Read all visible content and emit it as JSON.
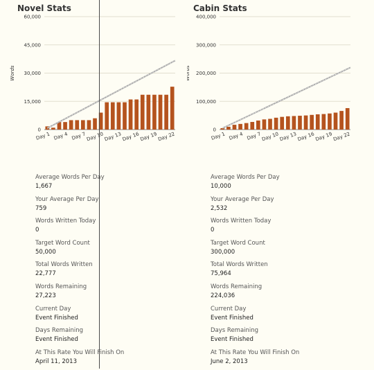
{
  "novel": {
    "title": "Novel Stats",
    "stats": [
      {
        "label": "Average Words Per Day",
        "value": "1,667"
      },
      {
        "label": "Your Average Per Day",
        "value": "759"
      },
      {
        "label": "Words Written Today",
        "value": "0"
      },
      {
        "label": "Target Word Count",
        "value": "50,000"
      },
      {
        "label": "Total Words Written",
        "value": "22,777"
      },
      {
        "label": "Words Remaining",
        "value": "27,223"
      },
      {
        "label": "Current Day",
        "value": "Event Finished"
      },
      {
        "label": "Days Remaining",
        "value": "Event Finished"
      },
      {
        "label": "At This Rate You Will Finish On",
        "value": "April 11, 2013"
      }
    ]
  },
  "cabin": {
    "title": "Cabin Stats",
    "stats": [
      {
        "label": "Average Words Per Day",
        "value": "10,000"
      },
      {
        "label": "Your Average Per Day",
        "value": "2,532"
      },
      {
        "label": "Words Written Today",
        "value": "0"
      },
      {
        "label": "Target Word Count",
        "value": "300,000"
      },
      {
        "label": "Total Words Written",
        "value": "75,964"
      },
      {
        "label": "Words Remaining",
        "value": "224,036"
      },
      {
        "label": "Current Day",
        "value": "Event Finished"
      },
      {
        "label": "Days Remaining",
        "value": "Event Finished"
      },
      {
        "label": "At This Rate You Will Finish On",
        "value": "June 2, 2013"
      }
    ]
  },
  "chart_data": [
    {
      "type": "bar",
      "title": "Novel Stats",
      "ylabel": "Words",
      "xlabel": "",
      "ylim": [
        0,
        60000
      ],
      "yticks": [
        0,
        15000,
        30000,
        45000,
        60000
      ],
      "ytick_labels": [
        "0",
        "15,000",
        "30,000",
        "45,000",
        "60,000"
      ],
      "grid": true,
      "categories": [
        "Day 1",
        "Day 2",
        "Day 3",
        "Day 4",
        "Day 5",
        "Day 6",
        "Day 7",
        "Day 8",
        "Day 9",
        "Day 10",
        "Day 11",
        "Day 12",
        "Day 13",
        "Day 14",
        "Day 15",
        "Day 16",
        "Day 17",
        "Day 18",
        "Day 19",
        "Day 20",
        "Day 21",
        "Day 22"
      ],
      "xtick_labels": [
        "Day 1",
        "Day 4",
        "Day 7",
        "Day 10",
        "Day 13",
        "Day 16",
        "Day 19",
        "Day 22"
      ],
      "values": [
        1700,
        1000,
        4000,
        4000,
        5000,
        5000,
        5000,
        5000,
        6000,
        9000,
        14500,
        14500,
        14500,
        14500,
        16000,
        16000,
        18500,
        18500,
        18500,
        18500,
        18500,
        22777
      ],
      "target_line": {
        "from": 0,
        "to": 36667
      },
      "bar_color": "#b5531e",
      "target_color": "#aaaaaa"
    },
    {
      "type": "bar",
      "title": "Cabin Stats",
      "ylabel": "Words",
      "xlabel": "",
      "ylim": [
        0,
        400000
      ],
      "yticks": [
        0,
        100000,
        200000,
        300000,
        400000
      ],
      "ytick_labels": [
        "0",
        "100,000",
        "200,000",
        "300,000",
        "400,000"
      ],
      "grid": true,
      "categories": [
        "Day 1",
        "Day 2",
        "Day 3",
        "Day 4",
        "Day 5",
        "Day 6",
        "Day 7",
        "Day 8",
        "Day 9",
        "Day 10",
        "Day 11",
        "Day 12",
        "Day 13",
        "Day 14",
        "Day 15",
        "Day 16",
        "Day 17",
        "Day 18",
        "Day 19",
        "Day 20",
        "Day 21",
        "Day 22"
      ],
      "xtick_labels": [
        "Day 1",
        "Day 4",
        "Day 7",
        "Day 10",
        "Day 13",
        "Day 16",
        "Day 19",
        "Day 22"
      ],
      "values": [
        5000,
        10000,
        17000,
        20000,
        23000,
        27000,
        32000,
        36000,
        38000,
        42000,
        45000,
        47000,
        48000,
        49000,
        50000,
        52000,
        54000,
        55000,
        57000,
        60000,
        66000,
        75964
      ],
      "target_line": {
        "from": 0,
        "to": 220000
      },
      "bar_color": "#b5531e",
      "target_color": "#aaaaaa"
    }
  ]
}
